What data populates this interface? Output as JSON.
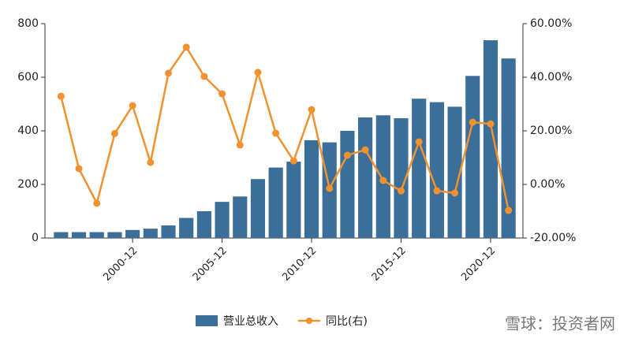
{
  "chart_data": {
    "type": "bar_line",
    "categories": [
      null,
      null,
      null,
      null,
      "2000-12",
      null,
      null,
      null,
      null,
      "2005-12",
      null,
      null,
      null,
      null,
      "2010-12",
      null,
      null,
      null,
      null,
      "2015-12",
      null,
      null,
      null,
      null,
      "2020-12",
      null
    ],
    "series": [
      {
        "name": "营业总收入",
        "type": "bar",
        "color": "#3b6e98",
        "values": [
          22,
          22,
          22,
          22,
          30,
          35,
          47,
          75,
          100,
          135,
          155,
          220,
          263,
          285,
          365,
          357,
          400,
          450,
          458,
          447,
          520,
          507,
          490,
          605,
          738,
          670
        ]
      },
      {
        "name": "同比(右)",
        "type": "line",
        "axis": "y2",
        "color": "#f0922f",
        "values": [
          32.9,
          5.9,
          -7,
          19,
          29.4,
          8.2,
          41.5,
          51.2,
          40.3,
          33.8,
          14.7,
          41.8,
          19.1,
          8.8,
          27.9,
          -1.5,
          10.9,
          12.9,
          1.5,
          -2.4,
          15.9,
          -2.4,
          -3.2,
          23.2,
          22.6,
          -9.7
        ]
      }
    ],
    "ylim": [
      0,
      800
    ],
    "yticks": [
      0,
      200,
      400,
      600,
      800
    ],
    "y2lim": [
      -20,
      60
    ],
    "y2ticks": [
      {
        "value": -20,
        "label": "-20.00%"
      },
      {
        "value": 0,
        "label": "0.00%"
      },
      {
        "value": 20,
        "label": "20.00%"
      },
      {
        "value": 40,
        "label": "40.00%"
      },
      {
        "value": 60,
        "label": "60.00%"
      }
    ],
    "legend": "bottom",
    "watermark": "雪球：投资者网"
  }
}
